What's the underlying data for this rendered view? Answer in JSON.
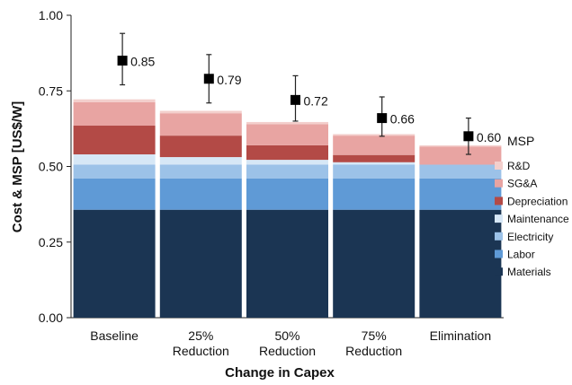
{
  "chart_data": {
    "type": "bar",
    "stacked": true,
    "xlabel": "Change in Capex",
    "ylabel": "Cost & MSP [US$/W]",
    "ylim": [
      0,
      1.0
    ],
    "yticks": [
      "0.00",
      "0.25",
      "0.50",
      "0.75",
      "1.00"
    ],
    "categories": [
      "Baseline",
      "25%\nReduction",
      "50%\nReduction",
      "75%\nReduction",
      "Elimination"
    ],
    "series": [
      {
        "name": "Materials",
        "color": "#1b3553",
        "values": [
          0.357,
          0.357,
          0.357,
          0.357,
          0.357
        ]
      },
      {
        "name": "Labor",
        "color": "#5f9ad6",
        "values": [
          0.103,
          0.103,
          0.103,
          0.103,
          0.103
        ]
      },
      {
        "name": "Electricity",
        "color": "#9cc2e8",
        "values": [
          0.046,
          0.046,
          0.046,
          0.046,
          0.046
        ]
      },
      {
        "name": "Maintenance",
        "color": "#d6e7f6",
        "values": [
          0.034,
          0.025,
          0.016,
          0.008,
          0.0
        ]
      },
      {
        "name": "Depreciation",
        "color": "#b34a46",
        "values": [
          0.095,
          0.071,
          0.048,
          0.024,
          0.0
        ]
      },
      {
        "name": "SG&A",
        "color": "#e8a4a2",
        "values": [
          0.078,
          0.074,
          0.07,
          0.064,
          0.06
        ]
      },
      {
        "name": "R&D",
        "color": "#f3cfcc",
        "values": [
          0.009,
          0.008,
          0.007,
          0.005,
          0.004
        ]
      }
    ],
    "msp": {
      "name": "MSP",
      "values": [
        0.85,
        0.79,
        0.72,
        0.66,
        0.6
      ],
      "labels": [
        "0.85",
        "0.79",
        "0.72",
        "0.66",
        "0.60"
      ],
      "error_high": [
        0.94,
        0.87,
        0.8,
        0.73,
        0.66
      ],
      "error_low": [
        0.77,
        0.71,
        0.65,
        0.6,
        0.54
      ]
    },
    "legend_position": "right"
  }
}
